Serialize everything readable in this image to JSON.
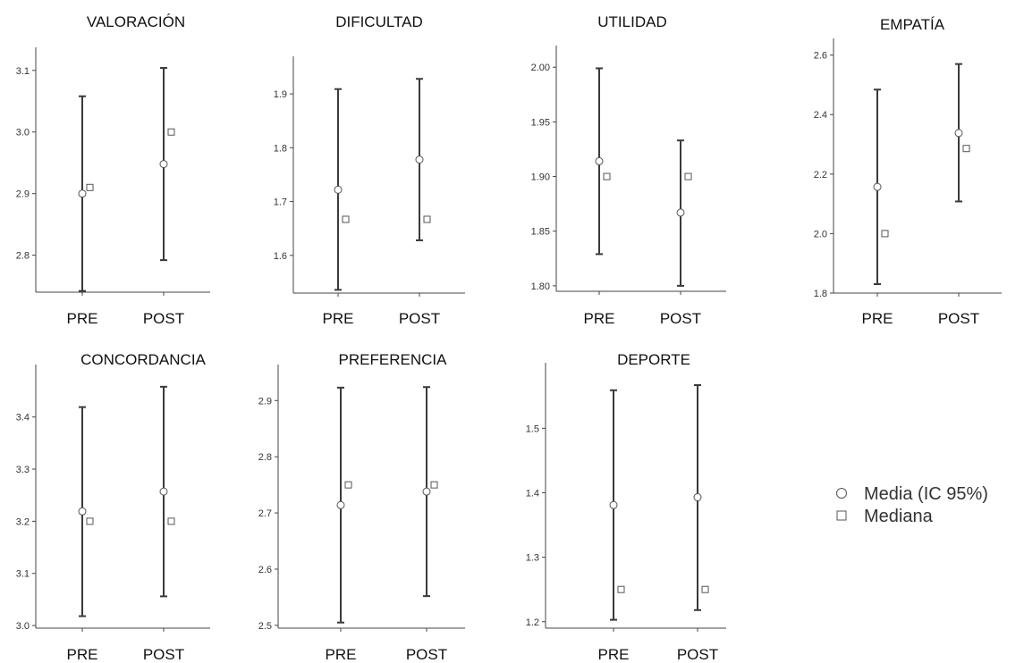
{
  "chart_data": [
    {
      "type": "errorbar",
      "title": "VALORACIÓN",
      "categories": [
        "PRE",
        "POST"
      ],
      "ylim": [
        2.74,
        3.12
      ],
      "yticks": [
        2.8,
        2.9,
        3.0,
        3.1
      ],
      "ytick_labels": [
        "2.8",
        "2.9",
        "3.0",
        "3.1"
      ],
      "series": [
        {
          "name": "Media (IC 95%)",
          "values": [
            2.9,
            2.948
          ],
          "ci_low": [
            2.742,
            2.792
          ],
          "ci_high": [
            3.058,
            3.104
          ]
        },
        {
          "name": "Mediana",
          "values": [
            2.91,
            3.0
          ]
        }
      ]
    },
    {
      "type": "errorbar",
      "title": "DIFICULTAD",
      "categories": [
        "PRE",
        "POST"
      ],
      "ylim": [
        1.53,
        1.95
      ],
      "yticks": [
        1.6,
        1.7,
        1.8,
        1.9
      ],
      "ytick_labels": [
        "1.6",
        "1.7",
        "1.8",
        "1.9"
      ],
      "series": [
        {
          "name": "Media (IC 95%)",
          "values": [
            1.722,
            1.778
          ],
          "ci_low": [
            1.536,
            1.628
          ],
          "ci_high": [
            1.909,
            1.928
          ]
        },
        {
          "name": "Mediana",
          "values": [
            1.667,
            1.667
          ]
        }
      ]
    },
    {
      "type": "errorbar",
      "title": "UTILIDAD",
      "categories": [
        "PRE",
        "POST"
      ],
      "ylim": [
        1.795,
        2.01
      ],
      "yticks": [
        1.8,
        1.85,
        1.9,
        1.95,
        2.0
      ],
      "ytick_labels": [
        "1.80",
        "1.85",
        "1.90",
        "1.95",
        "2.00"
      ],
      "series": [
        {
          "name": "Media (IC 95%)",
          "values": [
            1.914,
            1.867
          ],
          "ci_low": [
            1.829,
            1.8
          ],
          "ci_high": [
            1.999,
            1.933
          ]
        },
        {
          "name": "Mediana",
          "values": [
            1.9,
            1.9
          ]
        }
      ]
    },
    {
      "type": "errorbar",
      "title": "EMPATÍA",
      "categories": [
        "PRE",
        "POST"
      ],
      "ylim": [
        1.8,
        2.62
      ],
      "yticks": [
        1.8,
        2.0,
        2.2,
        2.4,
        2.6
      ],
      "ytick_labels": [
        "1.8",
        "2.0",
        "2.2",
        "2.4",
        "2.6"
      ],
      "series": [
        {
          "name": "Media (IC 95%)",
          "values": [
            2.157,
            2.338
          ],
          "ci_low": [
            1.83,
            2.108
          ],
          "ci_high": [
            2.484,
            2.57
          ]
        },
        {
          "name": "Mediana",
          "values": [
            2.0,
            2.286
          ]
        }
      ]
    },
    {
      "type": "errorbar",
      "title": "CONCORDANCIA",
      "categories": [
        "PRE",
        "POST"
      ],
      "ylim": [
        2.995,
        3.48
      ],
      "yticks": [
        3.0,
        3.1,
        3.2,
        3.3,
        3.4
      ],
      "ytick_labels": [
        "3.0",
        "3.1",
        "3.2",
        "3.3",
        "3.4"
      ],
      "series": [
        {
          "name": "Media (IC 95%)",
          "values": [
            3.219,
            3.257
          ],
          "ci_low": [
            3.018,
            3.056
          ],
          "ci_high": [
            3.419,
            3.458
          ]
        },
        {
          "name": "Mediana",
          "values": [
            3.2,
            3.2
          ]
        }
      ]
    },
    {
      "type": "errorbar",
      "title": "PREFERENCIA",
      "categories": [
        "PRE",
        "POST"
      ],
      "ylim": [
        2.495,
        2.945
      ],
      "yticks": [
        2.5,
        2.6,
        2.7,
        2.8,
        2.9
      ],
      "ytick_labels": [
        "2.5",
        "2.6",
        "2.7",
        "2.8",
        "2.9"
      ],
      "series": [
        {
          "name": "Media (IC 95%)",
          "values": [
            2.714,
            2.738
          ],
          "ci_low": [
            2.505,
            2.552
          ],
          "ci_high": [
            2.923,
            2.924
          ]
        },
        {
          "name": "Mediana",
          "values": [
            2.75,
            2.75
          ]
        }
      ]
    },
    {
      "type": "errorbar",
      "title": "DEPORTE",
      "categories": [
        "PRE",
        "POST"
      ],
      "ylim": [
        1.19,
        1.585
      ],
      "yticks": [
        1.2,
        1.3,
        1.4,
        1.5
      ],
      "ytick_labels": [
        "1.2",
        "1.3",
        "1.4",
        "1.5"
      ],
      "series": [
        {
          "name": "Media (IC 95%)",
          "values": [
            1.381,
            1.393
          ],
          "ci_low": [
            1.203,
            1.218
          ],
          "ci_high": [
            1.559,
            1.567
          ]
        },
        {
          "name": "Mediana",
          "values": [
            1.25,
            1.25
          ]
        }
      ]
    }
  ],
  "legend": {
    "mean_label": "Media (IC 95%)",
    "median_label": "Mediana"
  }
}
